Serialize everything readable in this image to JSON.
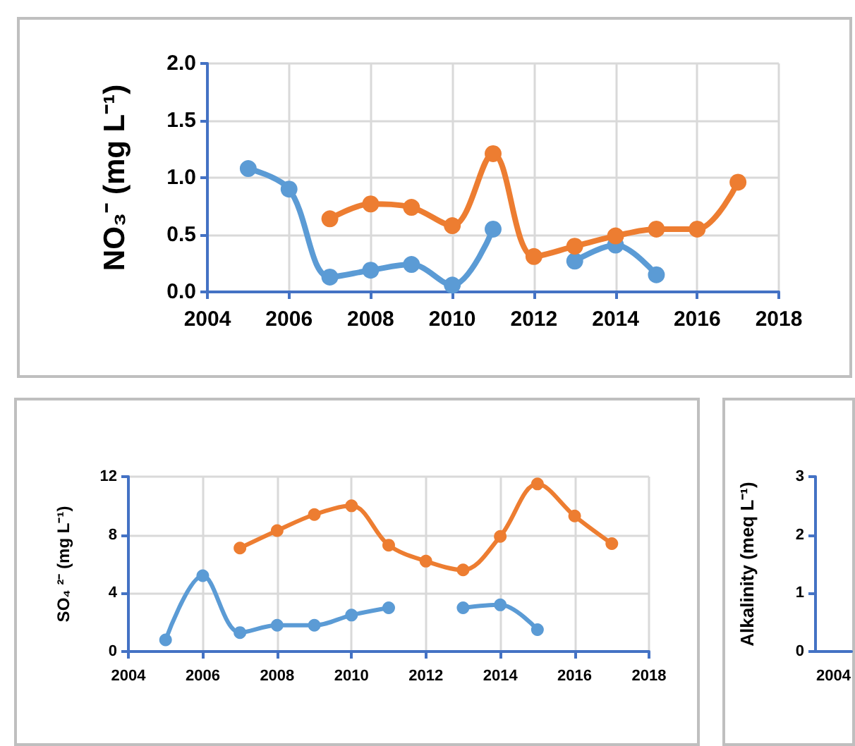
{
  "chart_data": [
    {
      "type": "line",
      "ylabel": "NO₃⁻ (mg L⁻¹)",
      "x": [
        2005,
        2006,
        2007,
        2008,
        2009,
        2010,
        2011,
        2012,
        2013,
        2014,
        2015,
        2016,
        2017
      ],
      "series": [
        {
          "color": "#5b9bd5",
          "values": [
            1.08,
            0.9,
            0.13,
            0.19,
            0.24,
            0.06,
            0.55,
            null,
            0.27,
            0.41,
            0.15,
            null,
            null
          ]
        },
        {
          "color": "#ed7d31",
          "values": [
            null,
            null,
            0.64,
            0.77,
            0.74,
            0.58,
            1.21,
            0.31,
            0.4,
            0.49,
            0.55,
            0.55,
            0.96
          ]
        }
      ],
      "xlim": [
        2004,
        2018
      ],
      "xticks": [
        2004,
        2006,
        2008,
        2010,
        2012,
        2014,
        2016,
        2018
      ],
      "ylim": [
        0,
        2
      ],
      "yticks": [
        {
          "value": 0,
          "label": "0.0"
        },
        {
          "value": 0.5,
          "label": "0.5"
        },
        {
          "value": 1,
          "label": "1.0"
        },
        {
          "value": 1.5,
          "label": "1.5"
        },
        {
          "value": 2,
          "label": "2.0"
        }
      ],
      "grid": true,
      "marker": "circle",
      "line_style": "solid"
    },
    {
      "type": "line",
      "ylabel": "SO₄ ²⁻ (mg L⁻¹)",
      "x": [
        2005,
        2006,
        2007,
        2008,
        2009,
        2010,
        2011,
        2012,
        2013,
        2014,
        2015,
        2016,
        2017
      ],
      "series": [
        {
          "color": "#5b9bd5",
          "values": [
            0.8,
            5.2,
            1.3,
            1.8,
            1.8,
            2.5,
            3.0,
            null,
            3.0,
            3.2,
            1.5,
            null,
            null
          ]
        },
        {
          "color": "#ed7d31",
          "values": [
            null,
            null,
            7.1,
            8.3,
            9.4,
            10.0,
            7.3,
            6.2,
            5.6,
            7.9,
            11.5,
            9.3,
            7.4
          ]
        }
      ],
      "xlim": [
        2004,
        2018
      ],
      "xticks": [
        2004,
        2006,
        2008,
        2010,
        2012,
        2014,
        2016,
        2018
      ],
      "ylim": [
        0,
        12
      ],
      "yticks": [
        0,
        4,
        8,
        12
      ],
      "grid": true,
      "marker": "circle",
      "line_style": "solid"
    },
    {
      "type": "line",
      "ylabel": "Alkalinity (meq L⁻¹)",
      "categories": [
        "2004"
      ],
      "values": [
        null
      ],
      "ylim": [
        0,
        3
      ],
      "yticks": [
        0,
        1,
        2,
        3
      ]
    }
  ]
}
